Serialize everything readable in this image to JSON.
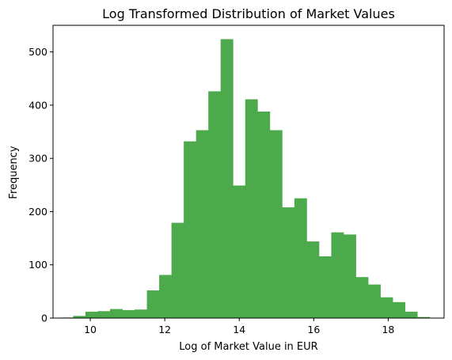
{
  "chart_data": {
    "type": "bar",
    "title": "Log Transformed Distribution of Market Values",
    "xlabel": "Log of Market Value in EUR",
    "ylabel": "Frequency",
    "xlim": [
      9.0,
      19.5
    ],
    "ylim": [
      0,
      550
    ],
    "x_ticks": [
      10,
      12,
      14,
      16,
      18
    ],
    "y_ticks": [
      0,
      100,
      200,
      300,
      400,
      500
    ],
    "grid": false,
    "bar_color": "#4caa4c",
    "bins": [
      {
        "x0": 9.21,
        "x1": 9.54,
        "count": 1
      },
      {
        "x0": 9.54,
        "x1": 9.87,
        "count": 4
      },
      {
        "x0": 9.87,
        "x1": 10.2,
        "count": 12
      },
      {
        "x0": 10.2,
        "x1": 10.53,
        "count": 13
      },
      {
        "x0": 10.53,
        "x1": 10.86,
        "count": 17
      },
      {
        "x0": 10.86,
        "x1": 11.19,
        "count": 15
      },
      {
        "x0": 11.19,
        "x1": 11.52,
        "count": 16
      },
      {
        "x0": 11.52,
        "x1": 11.85,
        "count": 52
      },
      {
        "x0": 11.85,
        "x1": 12.18,
        "count": 81
      },
      {
        "x0": 12.18,
        "x1": 12.51,
        "count": 179
      },
      {
        "x0": 12.51,
        "x1": 12.84,
        "count": 332
      },
      {
        "x0": 12.84,
        "x1": 13.17,
        "count": 353
      },
      {
        "x0": 13.17,
        "x1": 13.5,
        "count": 426
      },
      {
        "x0": 13.5,
        "x1": 13.83,
        "count": 524
      },
      {
        "x0": 13.83,
        "x1": 14.16,
        "count": 249
      },
      {
        "x0": 14.16,
        "x1": 14.49,
        "count": 411
      },
      {
        "x0": 14.49,
        "x1": 14.82,
        "count": 388
      },
      {
        "x0": 14.82,
        "x1": 15.15,
        "count": 353
      },
      {
        "x0": 15.15,
        "x1": 15.48,
        "count": 208
      },
      {
        "x0": 15.48,
        "x1": 15.81,
        "count": 225
      },
      {
        "x0": 15.81,
        "x1": 16.14,
        "count": 144
      },
      {
        "x0": 16.14,
        "x1": 16.47,
        "count": 116
      },
      {
        "x0": 16.47,
        "x1": 16.8,
        "count": 161
      },
      {
        "x0": 16.8,
        "x1": 17.13,
        "count": 157
      },
      {
        "x0": 17.13,
        "x1": 17.46,
        "count": 77
      },
      {
        "x0": 17.46,
        "x1": 17.79,
        "count": 63
      },
      {
        "x0": 17.79,
        "x1": 18.12,
        "count": 39
      },
      {
        "x0": 18.12,
        "x1": 18.45,
        "count": 30
      },
      {
        "x0": 18.45,
        "x1": 18.78,
        "count": 12
      },
      {
        "x0": 18.78,
        "x1": 19.11,
        "count": 2
      }
    ]
  }
}
